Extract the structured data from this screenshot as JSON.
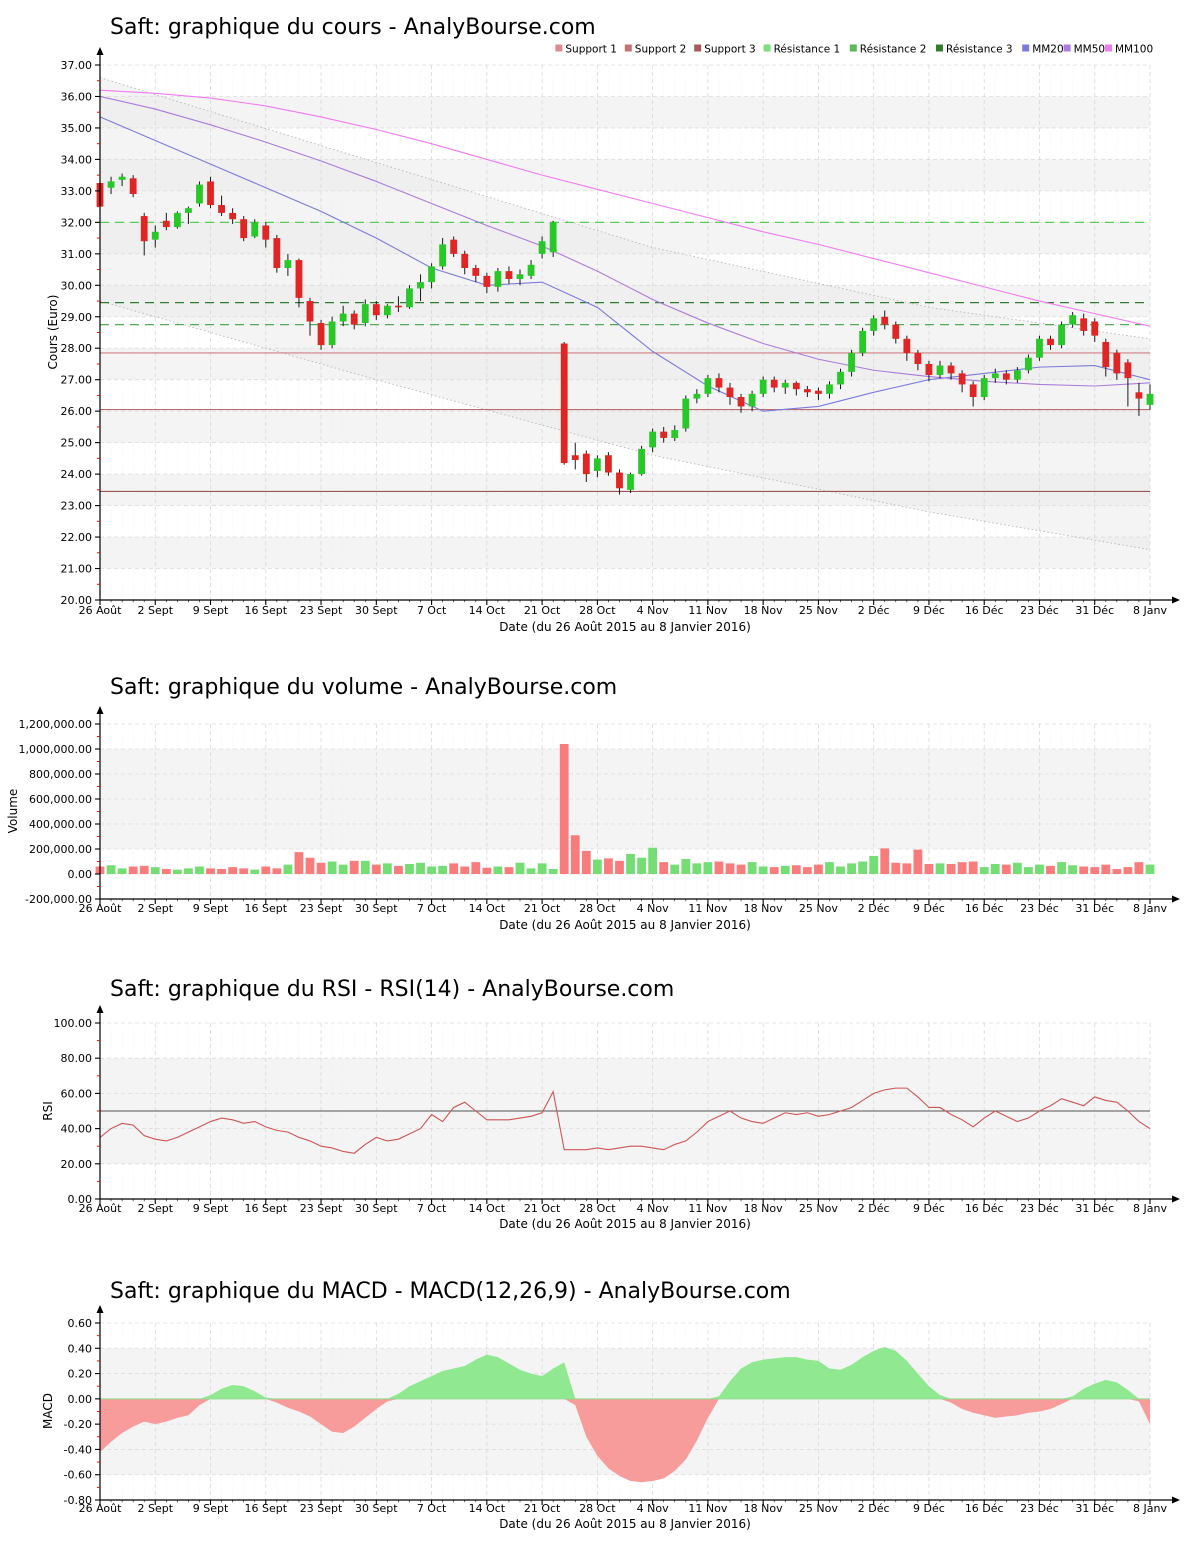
{
  "x_axis": {
    "label": "Date (du 26 Août 2015 au 8 Janvier 2016)",
    "categories": [
      "26 Août",
      "2 Sept",
      "9 Sept",
      "16 Sept",
      "23 Sept",
      "30 Sept",
      "7 Oct",
      "14 Oct",
      "21 Oct",
      "28 Oct",
      "4 Nov",
      "11 Nov",
      "18 Nov",
      "25 Nov",
      "2 Déc",
      "9 Déc",
      "16 Déc",
      "23 Déc",
      "31 Déc",
      "8 Janv"
    ]
  },
  "legend": [
    {
      "label": "Support 1",
      "color": "#d98f8f"
    },
    {
      "label": "Support 2",
      "color": "#c47272"
    },
    {
      "label": "Support 3",
      "color": "#a85a5a"
    },
    {
      "label": "Résistance 1",
      "color": "#7edd7e"
    },
    {
      "label": "Résistance 2",
      "color": "#55bb55"
    },
    {
      "label": "Résistance 3",
      "color": "#2e7d2e"
    },
    {
      "label": "MM20",
      "color": "#7b7bdb"
    },
    {
      "label": "MM50",
      "color": "#a97bdb"
    },
    {
      "label": "MM100",
      "color": "#ef7bef"
    }
  ],
  "chart_data": [
    {
      "type": "candlestick",
      "title": "Saft: graphique du cours - AnalyBourse.com",
      "ylabel": "Cours (Euro)",
      "xlabel": "Date (du 26 Août 2015 au 8 Janvier 2016)",
      "ylim": [
        20,
        37
      ],
      "y_ticks": [
        "37.00",
        "36.00",
        "35.00",
        "34.00",
        "33.00",
        "32.00",
        "31.00",
        "30.00",
        "29.00",
        "28.00",
        "27.00",
        "26.00",
        "25.00",
        "24.00",
        "23.00",
        "22.00",
        "21.00",
        "20.00"
      ],
      "grid": true,
      "legend_position": "top-right",
      "colors": {
        "up": "#28c828",
        "down": "#e02525",
        "wick": "#1a1a1a"
      },
      "supports": [
        {
          "label": "Support 1",
          "value": 27.85,
          "color": "#d08080"
        },
        {
          "label": "Support 2",
          "value": 26.05,
          "color": "#b96a6a"
        },
        {
          "label": "Support 3",
          "value": 23.45,
          "color": "#9a5252"
        }
      ],
      "resistances": [
        {
          "label": "Résistance 1",
          "value": 32.0,
          "color": "#55cc55"
        },
        {
          "label": "Résistance 2",
          "value": 28.75,
          "color": "#55aa55"
        },
        {
          "label": "Résistance 3",
          "value": 29.45,
          "color": "#2e7d2e"
        }
      ],
      "envelope": {
        "upper": [
          [
            0,
            36.6
          ],
          [
            25,
            33.9
          ],
          [
            50,
            31.2
          ],
          [
            75,
            29.3
          ],
          [
            95,
            28.3
          ]
        ],
        "lower": [
          [
            0,
            29.5
          ],
          [
            25,
            27.0
          ],
          [
            50,
            24.6
          ],
          [
            75,
            22.8
          ],
          [
            95,
            21.6
          ]
        ]
      },
      "moving_averages": [
        {
          "name": "MM20",
          "color": "#7b7bdb",
          "step": 5,
          "values": [
            35.35,
            34.6,
            33.85,
            33.1,
            32.35,
            31.5,
            30.55,
            30.0,
            30.1,
            29.3,
            27.9,
            26.8,
            26.0,
            26.15,
            26.6,
            27.0,
            27.2,
            27.4,
            27.45,
            27.0
          ]
        },
        {
          "name": "MM50",
          "color": "#a97bdb",
          "step": 5,
          "values": [
            36.0,
            35.6,
            35.1,
            34.55,
            33.95,
            33.3,
            32.6,
            31.9,
            31.25,
            30.45,
            29.55,
            28.8,
            28.15,
            27.65,
            27.3,
            27.1,
            26.95,
            26.85,
            26.8,
            26.9
          ]
        },
        {
          "name": "MM100",
          "color": "#ef7bef",
          "step": 5,
          "values": [
            36.2,
            36.1,
            35.95,
            35.7,
            35.35,
            34.95,
            34.5,
            34.0,
            33.5,
            33.05,
            32.6,
            32.15,
            31.7,
            31.3,
            30.85,
            30.4,
            29.95,
            29.5,
            29.1,
            28.7
          ]
        }
      ],
      "candles_ohlc": [
        [
          33.25,
          33.35,
          32.3,
          32.5
        ],
        [
          33.1,
          33.45,
          32.9,
          33.3
        ],
        [
          33.35,
          33.55,
          33.15,
          33.45
        ],
        [
          33.4,
          33.5,
          32.8,
          32.9
        ],
        [
          32.2,
          32.3,
          30.95,
          31.4
        ],
        [
          31.45,
          31.9,
          31.2,
          31.7
        ],
        [
          32.05,
          32.3,
          31.75,
          31.85
        ],
        [
          31.85,
          32.35,
          31.8,
          32.3
        ],
        [
          32.3,
          32.5,
          31.95,
          32.45
        ],
        [
          32.6,
          33.3,
          32.5,
          33.2
        ],
        [
          33.3,
          33.45,
          32.45,
          32.55
        ],
        [
          32.55,
          32.85,
          32.2,
          32.3
        ],
        [
          32.3,
          32.45,
          31.95,
          32.1
        ],
        [
          32.1,
          32.2,
          31.4,
          31.5
        ],
        [
          31.55,
          32.1,
          31.5,
          32.0
        ],
        [
          31.9,
          32.0,
          31.2,
          31.45
        ],
        [
          31.5,
          31.6,
          30.4,
          30.55
        ],
        [
          30.55,
          31.0,
          30.3,
          30.8
        ],
        [
          30.8,
          30.85,
          29.3,
          29.6
        ],
        [
          29.5,
          29.6,
          28.4,
          28.85
        ],
        [
          28.8,
          28.9,
          27.95,
          28.1
        ],
        [
          28.1,
          29.0,
          28.0,
          28.85
        ],
        [
          28.85,
          29.35,
          28.7,
          29.1
        ],
        [
          29.1,
          29.2,
          28.6,
          28.75
        ],
        [
          28.8,
          29.55,
          28.7,
          29.4
        ],
        [
          29.4,
          29.5,
          28.9,
          29.05
        ],
        [
          29.05,
          29.4,
          28.95,
          29.35
        ],
        [
          29.35,
          29.65,
          29.15,
          29.3
        ],
        [
          29.3,
          30.0,
          29.25,
          29.9
        ],
        [
          29.9,
          30.35,
          29.5,
          30.1
        ],
        [
          30.1,
          30.7,
          29.9,
          30.6
        ],
        [
          30.6,
          31.5,
          30.5,
          31.3
        ],
        [
          31.45,
          31.55,
          30.9,
          31.0
        ],
        [
          31.0,
          31.1,
          30.35,
          30.55
        ],
        [
          30.55,
          30.65,
          30.1,
          30.3
        ],
        [
          30.3,
          30.4,
          29.75,
          29.95
        ],
        [
          29.95,
          30.55,
          29.8,
          30.45
        ],
        [
          30.45,
          30.6,
          30.05,
          30.2
        ],
        [
          30.2,
          30.5,
          30.0,
          30.35
        ],
        [
          30.3,
          30.8,
          30.2,
          30.65
        ],
        [
          31.0,
          31.55,
          30.85,
          31.4
        ],
        [
          31.05,
          32.05,
          30.9,
          32.0
        ],
        [
          28.15,
          28.2,
          24.3,
          24.35
        ],
        [
          24.6,
          25.0,
          24.15,
          24.45
        ],
        [
          24.65,
          24.75,
          23.75,
          24.0
        ],
        [
          24.1,
          24.6,
          23.9,
          24.5
        ],
        [
          24.6,
          24.7,
          23.95,
          24.05
        ],
        [
          24.05,
          24.15,
          23.35,
          23.55
        ],
        [
          23.5,
          24.05,
          23.4,
          24.0
        ],
        [
          24.0,
          24.9,
          23.95,
          24.8
        ],
        [
          24.85,
          25.45,
          24.7,
          25.35
        ],
        [
          25.35,
          25.5,
          25.0,
          25.15
        ],
        [
          25.15,
          25.55,
          25.05,
          25.4
        ],
        [
          25.45,
          26.5,
          25.35,
          26.4
        ],
        [
          26.4,
          26.7,
          26.25,
          26.55
        ],
        [
          26.55,
          27.15,
          26.45,
          27.05
        ],
        [
          27.05,
          27.2,
          26.6,
          26.75
        ],
        [
          26.75,
          26.9,
          26.2,
          26.45
        ],
        [
          26.45,
          26.55,
          25.95,
          26.15
        ],
        [
          26.15,
          26.65,
          26.0,
          26.55
        ],
        [
          26.55,
          27.1,
          26.45,
          27.0
        ],
        [
          27.0,
          27.1,
          26.6,
          26.75
        ],
        [
          26.75,
          27.0,
          26.55,
          26.9
        ],
        [
          26.9,
          26.95,
          26.5,
          26.7
        ],
        [
          26.7,
          26.8,
          26.45,
          26.6
        ],
        [
          26.65,
          26.75,
          26.35,
          26.55
        ],
        [
          26.55,
          26.95,
          26.4,
          26.85
        ],
        [
          26.85,
          27.35,
          26.7,
          27.25
        ],
        [
          27.25,
          27.95,
          27.1,
          27.85
        ],
        [
          27.85,
          28.65,
          27.75,
          28.55
        ],
        [
          28.55,
          29.05,
          28.4,
          28.95
        ],
        [
          29.0,
          29.2,
          28.6,
          28.75
        ],
        [
          28.75,
          28.85,
          28.15,
          28.3
        ],
        [
          28.3,
          28.4,
          27.6,
          27.85
        ],
        [
          27.85,
          27.95,
          27.3,
          27.5
        ],
        [
          27.5,
          27.6,
          26.95,
          27.15
        ],
        [
          27.15,
          27.6,
          27.05,
          27.45
        ],
        [
          27.45,
          27.55,
          27.0,
          27.2
        ],
        [
          27.2,
          27.3,
          26.6,
          26.85
        ],
        [
          26.85,
          26.95,
          26.15,
          26.45
        ],
        [
          26.45,
          27.15,
          26.35,
          27.05
        ],
        [
          27.05,
          27.35,
          26.9,
          27.2
        ],
        [
          27.2,
          27.3,
          26.85,
          27.0
        ],
        [
          27.0,
          27.4,
          26.9,
          27.3
        ],
        [
          27.3,
          27.8,
          27.2,
          27.7
        ],
        [
          27.7,
          28.4,
          27.6,
          28.3
        ],
        [
          28.3,
          28.4,
          27.95,
          28.1
        ],
        [
          28.1,
          28.85,
          28.0,
          28.75
        ],
        [
          28.75,
          29.15,
          28.65,
          29.05
        ],
        [
          28.95,
          29.1,
          28.4,
          28.55
        ],
        [
          28.85,
          28.95,
          28.2,
          28.4
        ],
        [
          28.2,
          28.3,
          27.1,
          27.4
        ],
        [
          27.85,
          27.95,
          27.0,
          27.2
        ],
        [
          27.55,
          27.65,
          26.15,
          27.05
        ],
        [
          26.6,
          26.9,
          25.85,
          26.4
        ],
        [
          26.2,
          26.85,
          26.05,
          26.55
        ]
      ]
    },
    {
      "type": "bar",
      "title": "Saft: graphique du volume - AnalyBourse.com",
      "ylabel": "Volume",
      "xlabel": "Date (du 26 Août 2015 au 8 Janvier 2016)",
      "ylim": [
        -200000,
        1200000
      ],
      "y_ticks": [
        "1,200,000.00",
        "1,000,000.00",
        "800,000.00",
        "600,000.00",
        "400,000.00",
        "200,000.00",
        "0.00",
        "-200,000.00"
      ],
      "colors": {
        "up": "#74dd74",
        "down": "#f97c7c"
      },
      "values": [
        60000,
        70000,
        45000,
        60000,
        65000,
        55000,
        40000,
        35000,
        45000,
        60000,
        45000,
        40000,
        55000,
        45000,
        35000,
        60000,
        45000,
        75000,
        175000,
        130000,
        90000,
        100000,
        75000,
        105000,
        105000,
        75000,
        85000,
        65000,
        80000,
        90000,
        60000,
        65000,
        85000,
        60000,
        95000,
        50000,
        60000,
        55000,
        90000,
        45000,
        85000,
        40000,
        1040000,
        310000,
        185000,
        115000,
        125000,
        105000,
        160000,
        130000,
        210000,
        95000,
        75000,
        120000,
        85000,
        95000,
        100000,
        85000,
        75000,
        95000,
        60000,
        55000,
        65000,
        70000,
        55000,
        75000,
        95000,
        60000,
        85000,
        100000,
        145000,
        205000,
        90000,
        85000,
        195000,
        80000,
        85000,
        80000,
        95000,
        100000,
        55000,
        80000,
        75000,
        90000,
        55000,
        75000,
        65000,
        95000,
        70000,
        60000,
        55000,
        75000,
        40000,
        55000,
        95000,
        75000
      ]
    },
    {
      "type": "line",
      "title": "Saft: graphique du RSI - RSI(14) - AnalyBourse.com",
      "ylabel": "RSI",
      "xlabel": "Date (du 26 Août 2015 au 8 Janvier 2016)",
      "ylim": [
        0,
        100
      ],
      "y_ticks": [
        "100.00",
        "80.00",
        "60.00",
        "40.00",
        "20.00",
        "0.00"
      ],
      "line_color": "#cc5555",
      "hline": 50,
      "values": [
        35,
        40,
        43,
        42,
        36,
        34,
        33,
        35,
        38,
        41,
        44,
        46,
        45,
        43,
        44,
        41,
        39,
        38,
        35,
        33,
        30,
        29,
        27,
        26,
        31,
        35,
        33,
        34,
        37,
        40,
        48,
        44,
        52,
        55,
        50,
        45,
        45,
        45,
        46,
        47,
        49,
        61,
        28,
        28,
        28,
        29,
        28,
        29,
        30,
        30,
        29,
        28,
        31,
        33,
        38,
        44,
        47,
        50,
        46,
        44,
        43,
        46,
        49,
        48,
        49,
        47,
        48,
        50,
        52,
        56,
        60,
        62,
        63,
        63,
        58,
        52,
        52,
        48,
        45,
        41,
        46,
        50,
        47,
        44,
        46,
        50,
        53,
        57,
        55,
        53,
        58,
        56,
        55,
        50,
        44,
        40
      ]
    },
    {
      "type": "area",
      "title": "Saft: graphique du MACD - MACD(12,26,9) - AnalyBourse.com",
      "ylabel": "MACD",
      "xlabel": "Date (du 26 Août 2015 au 8 Janvier 2016)",
      "ylim": [
        -0.8,
        0.6
      ],
      "y_ticks": [
        "0.60",
        "0.40",
        "0.20",
        "0.00",
        "-0.20",
        "-0.40",
        "-0.60",
        "-0.80"
      ],
      "colors": {
        "positive": "#90e890",
        "negative": "#f79b9b"
      },
      "values": [
        -0.42,
        -0.34,
        -0.27,
        -0.22,
        -0.18,
        -0.2,
        -0.18,
        -0.15,
        -0.13,
        -0.05,
        0.03,
        0.08,
        0.11,
        0.1,
        0.06,
        0.01,
        -0.03,
        -0.07,
        -0.1,
        -0.14,
        -0.2,
        -0.26,
        -0.27,
        -0.22,
        -0.15,
        -0.08,
        -0.02,
        0.04,
        0.1,
        0.14,
        0.18,
        0.22,
        0.24,
        0.26,
        0.31,
        0.35,
        0.33,
        0.28,
        0.23,
        0.2,
        0.18,
        0.24,
        0.29,
        -0.05,
        -0.3,
        -0.45,
        -0.55,
        -0.61,
        -0.65,
        -0.66,
        -0.65,
        -0.63,
        -0.57,
        -0.48,
        -0.33,
        -0.15,
        0.02,
        0.14,
        0.24,
        0.29,
        0.31,
        0.32,
        0.33,
        0.33,
        0.31,
        0.3,
        0.24,
        0.23,
        0.27,
        0.33,
        0.38,
        0.41,
        0.38,
        0.3,
        0.2,
        0.1,
        0.03,
        -0.03,
        -0.08,
        -0.11,
        -0.13,
        -0.15,
        -0.14,
        -0.13,
        -0.11,
        -0.1,
        -0.08,
        -0.04,
        0.02,
        0.08,
        0.12,
        0.15,
        0.13,
        0.07,
        -0.02,
        -0.2
      ]
    }
  ]
}
